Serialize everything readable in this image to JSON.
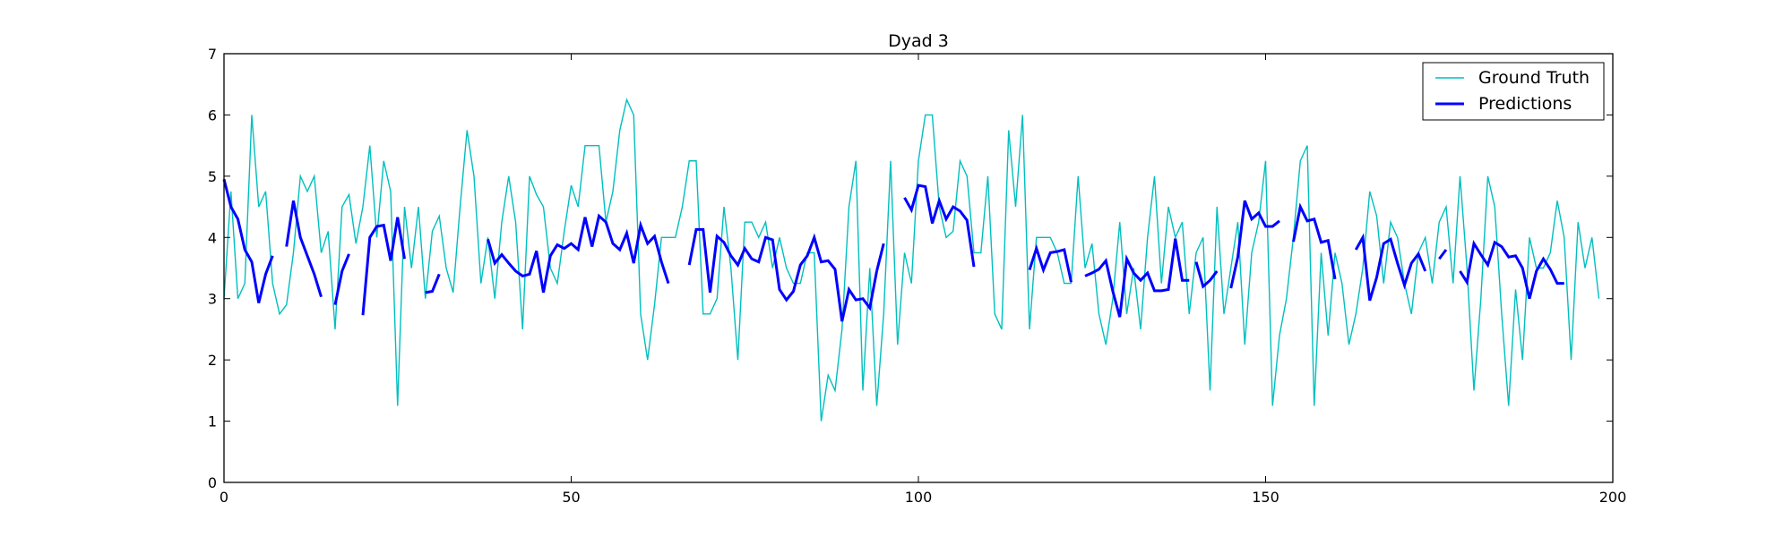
{
  "chart_data": {
    "type": "line",
    "title": "Dyad 3",
    "xlabel": "",
    "ylabel": "",
    "xlim": [
      0,
      200
    ],
    "ylim": [
      0,
      7
    ],
    "xticks": [
      0,
      50,
      100,
      150,
      200
    ],
    "yticks": [
      0,
      1,
      2,
      3,
      4,
      5,
      6,
      7
    ],
    "grid": false,
    "legend": {
      "position": "top-right"
    },
    "series": [
      {
        "name": "Ground Truth",
        "color": "#00BFBF",
        "style": "thin",
        "x": [
          0,
          1,
          2,
          3,
          4,
          5,
          6,
          7,
          8,
          9,
          10,
          11,
          12,
          13,
          14,
          15,
          16,
          17,
          18,
          19,
          20,
          21,
          22,
          23,
          24,
          25,
          26,
          27,
          28,
          29,
          30,
          31,
          32,
          33,
          34,
          35,
          36,
          37,
          38,
          39,
          40,
          41,
          42,
          43,
          44,
          45,
          46,
          47,
          48,
          49,
          50,
          51,
          52,
          53,
          54,
          55,
          56,
          57,
          58,
          59,
          60,
          61,
          62,
          63,
          64,
          65,
          66,
          67,
          68,
          69,
          70,
          71,
          72,
          73,
          74,
          75,
          76,
          77,
          78,
          79,
          80,
          81,
          82,
          83,
          84,
          85,
          86,
          87,
          88,
          89,
          90,
          91,
          92,
          93,
          94,
          95,
          96,
          97,
          98,
          99,
          100,
          101,
          102,
          103,
          104,
          105,
          106,
          107,
          108,
          109,
          110,
          111,
          112,
          113,
          114,
          115,
          116,
          117,
          118,
          119,
          120,
          121,
          122,
          123,
          124,
          125,
          126,
          127,
          128,
          129,
          130,
          131,
          132,
          133,
          134,
          135,
          136,
          137,
          138,
          139,
          140,
          141,
          142,
          143,
          144,
          145,
          146,
          147,
          148,
          149,
          150,
          151,
          152,
          153,
          154,
          155,
          156,
          157,
          158,
          159,
          160,
          161,
          162,
          163,
          164,
          165,
          166,
          167,
          168,
          169,
          170,
          171,
          172,
          173,
          174,
          175,
          176,
          177,
          178,
          179,
          180,
          181,
          182,
          183,
          184,
          185,
          186,
          187,
          188,
          189,
          190,
          191,
          192,
          193,
          194,
          195,
          196,
          197,
          198
        ],
        "y": [
          3.0,
          4.75,
          3.0,
          3.25,
          6.0,
          4.5,
          4.75,
          3.25,
          2.75,
          2.9,
          3.75,
          5.0,
          4.75,
          5.0,
          3.75,
          4.1,
          2.5,
          4.5,
          4.7,
          3.9,
          4.5,
          5.5,
          4.0,
          5.25,
          4.75,
          1.25,
          4.5,
          3.5,
          4.5,
          3.0,
          4.1,
          4.35,
          3.5,
          3.1,
          4.5,
          5.75,
          5.0,
          3.25,
          4.0,
          3.0,
          4.25,
          5.0,
          4.25,
          2.5,
          5.0,
          4.7,
          4.5,
          3.5,
          3.25,
          4.1,
          4.85,
          4.5,
          5.5,
          5.5,
          5.5,
          4.25,
          4.75,
          5.75,
          6.25,
          6.0,
          2.75,
          2.0,
          2.9,
          4.0,
          4.0,
          4.0,
          4.5,
          5.25,
          5.25,
          2.75,
          2.75,
          3.0,
          4.5,
          3.5,
          2.0,
          4.25,
          4.25,
          4.0,
          4.25,
          3.5,
          4.0,
          3.5,
          3.25,
          3.25,
          3.75,
          3.75,
          1.0,
          1.75,
          1.5,
          2.5,
          4.5,
          5.25,
          1.5,
          3.5,
          1.25,
          2.75,
          5.25,
          2.25,
          3.75,
          3.25,
          5.25,
          6.0,
          6.0,
          4.5,
          4.0,
          4.1,
          5.25,
          5.0,
          3.75,
          3.75,
          5.0,
          2.75,
          2.5,
          5.75,
          4.5,
          6.0,
          2.5,
          4.0,
          4.0,
          4.0,
          3.75,
          3.25,
          3.25,
          5.0,
          3.5,
          3.9,
          2.75,
          2.25,
          3.0,
          4.25,
          2.75,
          3.5,
          2.5,
          4.0,
          5.0,
          3.25,
          4.5,
          4.0,
          4.25,
          2.75,
          3.75,
          4.0,
          1.5,
          4.5,
          2.75,
          3.5,
          4.25,
          2.25,
          3.75,
          4.25,
          5.25,
          1.25,
          2.4,
          3.0,
          4.0,
          5.25,
          5.5,
          1.25,
          3.75,
          2.4,
          3.75,
          3.25,
          2.25,
          2.75,
          3.5,
          4.75,
          4.35,
          3.25,
          4.25,
          4.0,
          3.25,
          2.75,
          3.75,
          4.0,
          3.25,
          4.25,
          4.5,
          3.25,
          5.0,
          3.5,
          1.5,
          3.0,
          5.0,
          4.5,
          2.75,
          1.25,
          3.15,
          2.0,
          4.0,
          3.5,
          3.5,
          3.75,
          4.6,
          4.0,
          2.0,
          4.25,
          3.5,
          4.0,
          3.0
        ]
      },
      {
        "name": "Predictions",
        "color": "#0000FF",
        "style": "thick",
        "segments": [
          {
            "x": [
              0,
              1,
              2,
              3,
              4,
              5,
              6,
              7
            ],
            "y": [
              4.95,
              4.5,
              4.3,
              3.8,
              3.6,
              2.93,
              3.4,
              3.7
            ]
          },
          {
            "x": [
              9,
              10,
              11,
              12,
              13,
              14
            ],
            "y": [
              3.85,
              4.6,
              4.0,
              3.7,
              3.4,
              3.03
            ]
          },
          {
            "x": [
              16,
              17,
              18
            ],
            "y": [
              2.9,
              3.45,
              3.73
            ]
          },
          {
            "x": [
              20,
              21,
              22,
              23,
              24,
              25,
              26
            ],
            "y": [
              2.73,
              4.0,
              4.18,
              4.2,
              3.62,
              4.33,
              3.65
            ]
          },
          {
            "x": [
              29,
              30,
              31
            ],
            "y": [
              3.1,
              3.12,
              3.4
            ]
          },
          {
            "x": [
              38,
              39,
              40,
              41,
              42,
              43,
              44,
              45,
              46,
              47,
              48,
              49,
              50,
              51,
              52,
              53,
              54,
              55,
              56,
              57,
              58,
              59,
              60,
              61,
              62,
              63,
              64
            ],
            "y": [
              3.97,
              3.58,
              3.72,
              3.58,
              3.45,
              3.37,
              3.4,
              3.78,
              3.1,
              3.7,
              3.88,
              3.82,
              3.9,
              3.8,
              4.33,
              3.85,
              4.35,
              4.25,
              3.9,
              3.8,
              4.07,
              3.58,
              4.2,
              3.9,
              4.02,
              3.6,
              3.25
            ]
          },
          {
            "x": [
              67,
              68,
              69,
              70,
              71,
              72,
              73,
              74,
              75,
              76,
              77,
              78,
              79,
              80,
              81,
              82,
              83,
              84,
              85,
              86,
              87,
              88,
              89,
              90,
              91,
              92,
              93,
              94
            ],
            "y": [
              3.55,
              4.13,
              4.13,
              3.1,
              4.02,
              3.92,
              3.7,
              3.55,
              3.82,
              3.65,
              3.6,
              4.0,
              3.96,
              3.15,
              2.98,
              3.12,
              3.55,
              3.7,
              4.0,
              3.6,
              3.62,
              3.48,
              2.63,
              3.15,
              2.98,
              3.0,
              2.85,
              3.45
            ]
          },
          {
            "x": [
              94,
              95
            ],
            "y": [
              3.45,
              3.9
            ]
          },
          {
            "x": [
              98,
              99,
              100,
              101,
              102,
              103,
              104,
              105,
              106,
              107,
              108
            ],
            "y": [
              4.65,
              4.45,
              4.85,
              4.83,
              4.23,
              4.6,
              4.3,
              4.5,
              4.43,
              4.28,
              3.52
            ]
          },
          {
            "x": [
              116,
              117,
              118,
              119,
              120,
              121,
              122
            ],
            "y": [
              3.47,
              3.82,
              3.47,
              3.75,
              3.77,
              3.8,
              3.27
            ]
          },
          {
            "x": [
              124,
              125,
              126,
              127,
              128,
              129,
              130,
              131,
              132,
              133,
              134,
              135,
              136,
              137,
              138,
              139
            ],
            "y": [
              3.37,
              3.42,
              3.48,
              3.62,
              3.12,
              2.7,
              3.65,
              3.42,
              3.3,
              3.42,
              3.13,
              3.13,
              3.15,
              3.98,
              3.3,
              3.3
            ]
          },
          {
            "x": [
              140,
              141,
              142,
              143
            ],
            "y": [
              3.6,
              3.2,
              3.3,
              3.45
            ]
          },
          {
            "x": [
              145,
              146,
              147,
              148,
              149,
              150,
              151,
              152
            ],
            "y": [
              3.17,
              3.68,
              4.6,
              4.3,
              4.4,
              4.18,
              4.18,
              4.27
            ]
          },
          {
            "x": [
              154,
              155,
              156,
              157,
              158,
              159,
              160
            ],
            "y": [
              3.93,
              4.5,
              4.27,
              4.3,
              3.92,
              3.95,
              3.32
            ]
          },
          {
            "x": [
              163,
              164,
              165,
              166,
              167,
              168,
              169,
              170,
              171,
              172,
              173
            ],
            "y": [
              3.8,
              4.0,
              2.97,
              3.35,
              3.9,
              3.97,
              3.58,
              3.22,
              3.58,
              3.73,
              3.45
            ]
          },
          {
            "x": [
              175,
              176
            ],
            "y": [
              3.65,
              3.8
            ]
          },
          {
            "x": [
              178,
              179,
              180,
              181,
              182,
              183,
              184,
              185,
              186,
              187,
              188,
              189,
              190,
              191,
              192,
              193
            ],
            "y": [
              3.45,
              3.27,
              3.9,
              3.72,
              3.55,
              3.92,
              3.85,
              3.68,
              3.7,
              3.5,
              3.0,
              3.45,
              3.65,
              3.48,
              3.25,
              3.25
            ]
          }
        ]
      }
    ]
  }
}
